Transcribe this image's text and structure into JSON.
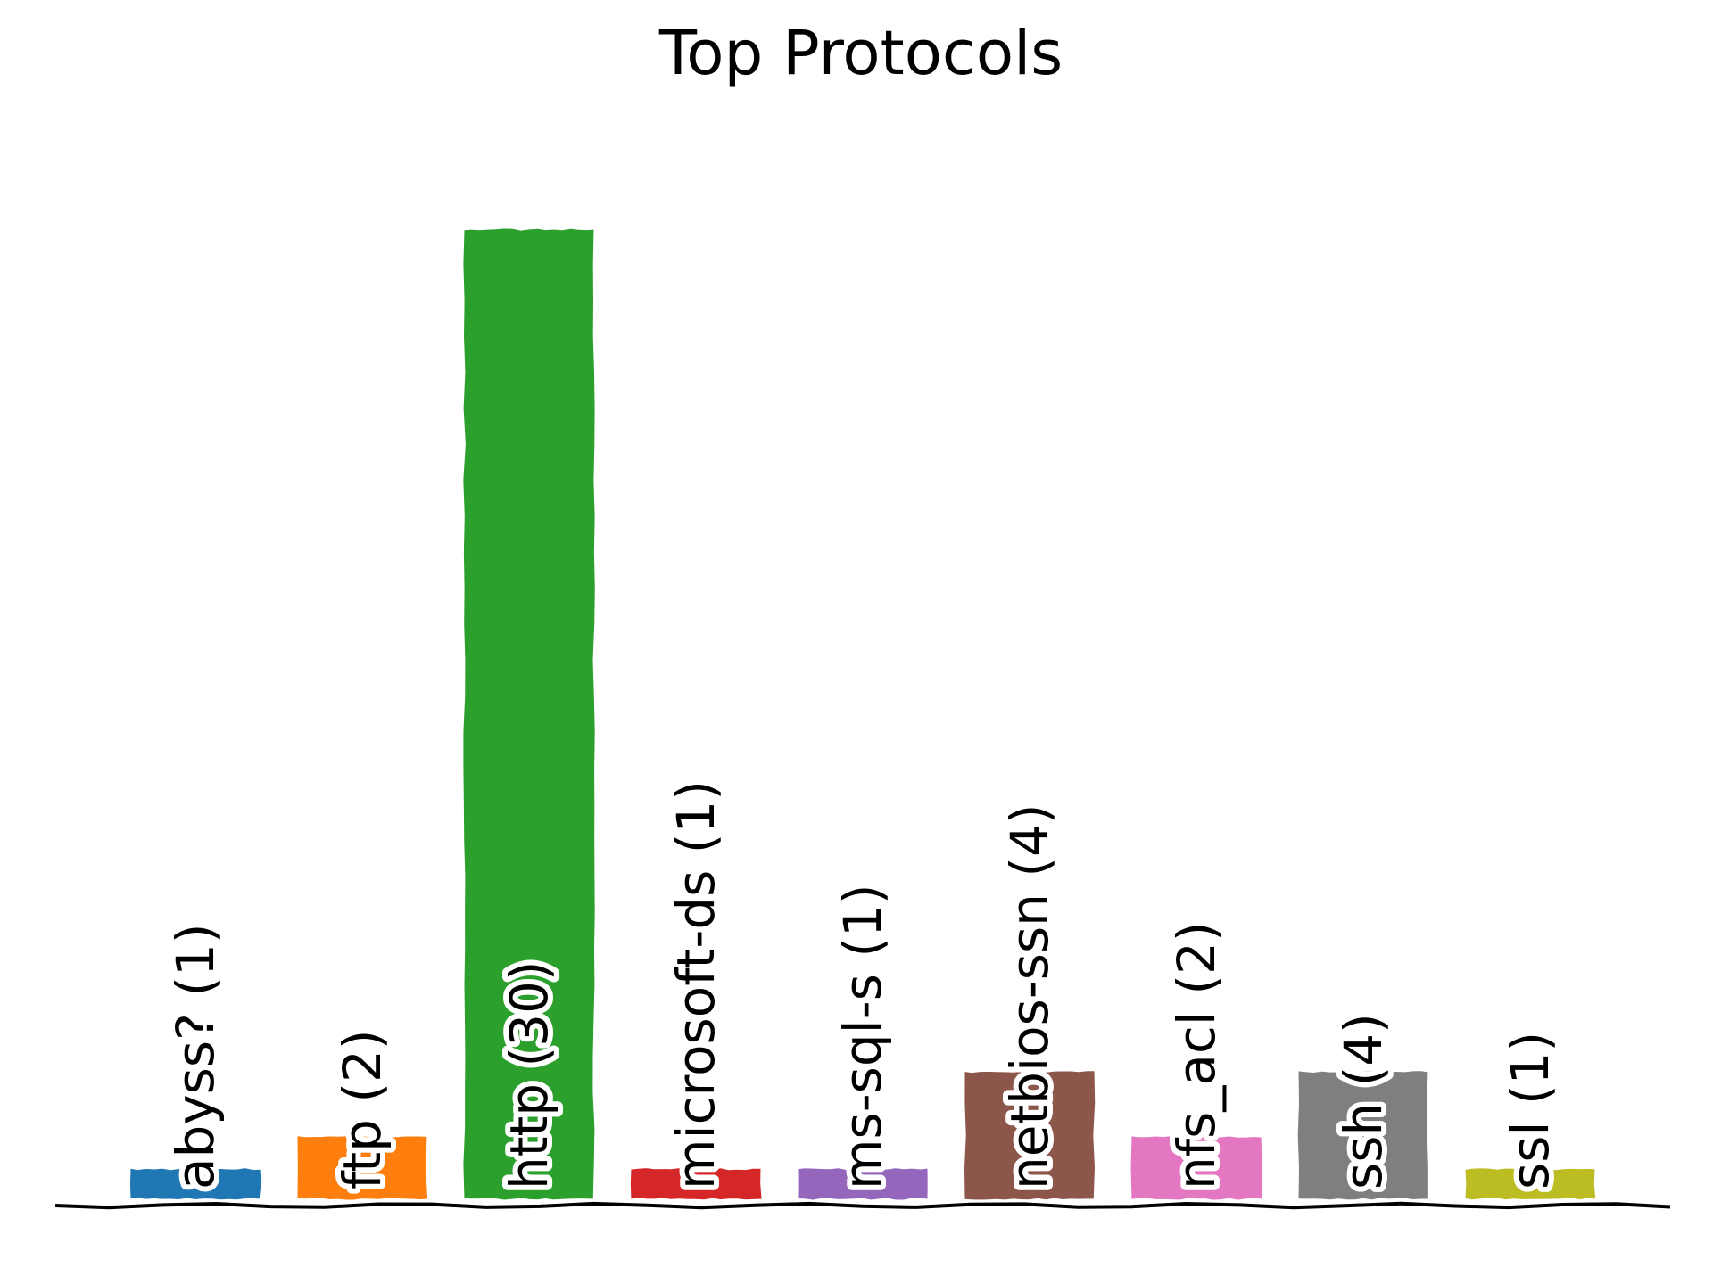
{
  "chart_data": {
    "type": "bar",
    "title": "Top Protocols",
    "xlabel": "",
    "ylabel": "",
    "ylim": [
      0,
      30
    ],
    "grid": false,
    "axes_visible": false,
    "style": "xkcd-sketch",
    "categories": [
      "abyss?",
      "ftp",
      "http",
      "microsoft-ds",
      "ms-sql-s",
      "netbios-ssn",
      "nfs_acl",
      "ssh",
      "ssl"
    ],
    "values": [
      1,
      2,
      30,
      1,
      1,
      4,
      2,
      4,
      1
    ],
    "labels": [
      "abyss? (1)",
      "ftp (2)",
      "http (30)",
      "microsoft-ds (1)",
      "ms-sql-s (1)",
      "netbios-ssn (4)",
      "nfs_acl (2)",
      "ssh (4)",
      "ssl (1)"
    ],
    "colors": [
      "#1f77b4",
      "#ff7f0e",
      "#2ca02c",
      "#d62728",
      "#9467bd",
      "#8c564b",
      "#e377c2",
      "#7f7f7f",
      "#bcbd22"
    ]
  }
}
